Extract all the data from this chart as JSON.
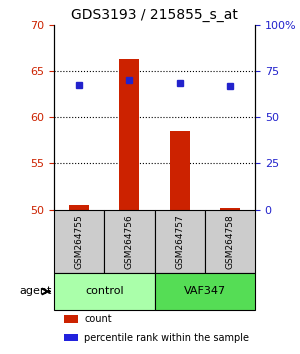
{
  "title": "GDS3193 / 215855_s_at",
  "samples": [
    "GSM264755",
    "GSM264756",
    "GSM264757",
    "GSM264758"
  ],
  "count_values": [
    50.5,
    66.3,
    58.5,
    50.2
  ],
  "percentile_values": [
    63.5,
    64.0,
    63.7,
    63.4
  ],
  "left_ylim": [
    50,
    70
  ],
  "left_yticks": [
    50,
    55,
    60,
    65,
    70
  ],
  "right_ylim": [
    0,
    100
  ],
  "right_yticks": [
    0,
    25,
    50,
    75,
    100
  ],
  "right_yticklabels": [
    "0",
    "25",
    "50",
    "75",
    "100%"
  ],
  "bar_color": "#cc2200",
  "dot_color": "#2222cc",
  "groups": [
    {
      "label": "control",
      "samples": [
        0,
        1
      ],
      "color": "#aaffaa"
    },
    {
      "label": "VAF347",
      "samples": [
        2,
        3
      ],
      "color": "#55dd55"
    }
  ],
  "group_label": "agent",
  "legend_items": [
    {
      "label": "count",
      "color": "#cc2200"
    },
    {
      "label": "percentile rank within the sample",
      "color": "#2222dd"
    }
  ],
  "grid_yticks": [
    55,
    60,
    65
  ],
  "sample_box_color": "#cccccc",
  "left_tick_color": "#cc2200",
  "right_tick_color": "#2222cc"
}
